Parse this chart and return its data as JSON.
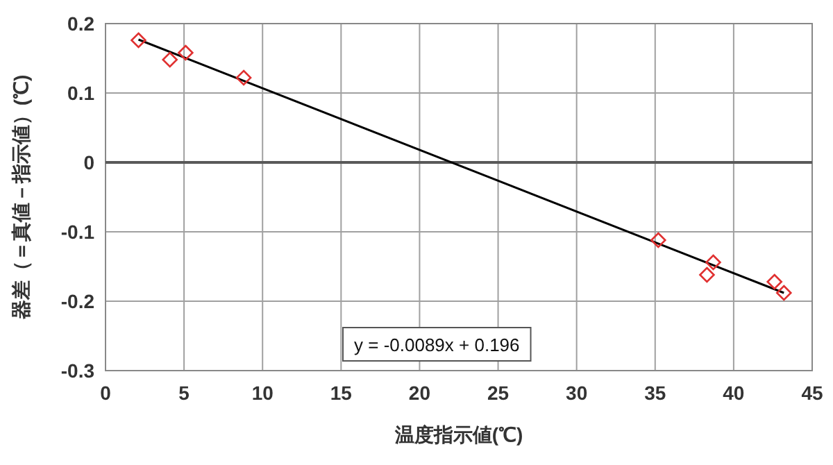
{
  "chart_data": {
    "type": "scatter",
    "xlabel": "温度指示値(℃)",
    "ylabel": "器差（＝真値－指示値）(℃)",
    "annotations": [
      "y = -0.0089x + 0.196"
    ],
    "series": [
      {
        "color": "#e03030",
        "marker": "diamond",
        "x": [
          2.1,
          4.1,
          5.1,
          8.8,
          35.2,
          38.3,
          38.7,
          42.6,
          43.2
        ],
        "values": [
          0.176,
          0.148,
          0.158,
          0.122,
          -0.112,
          -0.162,
          -0.144,
          -0.172,
          -0.188
        ]
      },
      {
        "type": "line",
        "color": "#000000",
        "marker": "none",
        "x": [
          2.1,
          43.2
        ],
        "values": [
          0.177,
          -0.188
        ]
      }
    ],
    "xlim": [
      0,
      45
    ],
    "xticks": [
      0,
      5,
      10,
      15,
      20,
      25,
      30,
      35,
      40,
      45
    ],
    "ylim": [
      -0.3,
      0.2
    ],
    "yticks": [
      -0.3,
      -0.2,
      -0.1,
      0,
      0.1,
      0.2
    ],
    "grid": true,
    "ref_lines": [
      {
        "axis": "y",
        "value": 0,
        "color": "#595959"
      }
    ]
  }
}
